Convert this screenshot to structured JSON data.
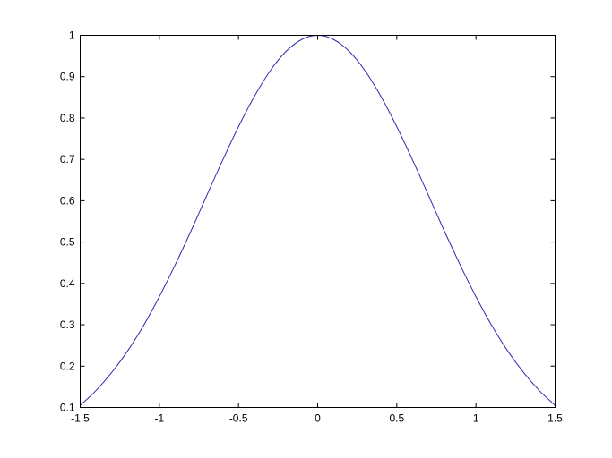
{
  "chart_data": {
    "type": "line",
    "title": "",
    "xlabel": "",
    "ylabel": "",
    "xlim": [
      -1.5,
      1.5
    ],
    "ylim": [
      0.1,
      1
    ],
    "grid": false,
    "box": true,
    "x_ticks": [
      -1.5,
      -1,
      -0.5,
      0,
      0.5,
      1,
      1.5
    ],
    "x_tick_labels": [
      "-1.5",
      "-1",
      "-0.5",
      "0",
      "0.5",
      "1",
      "1.5"
    ],
    "y_ticks": [
      0.1,
      0.2,
      0.3,
      0.4,
      0.5,
      0.6,
      0.7,
      0.8,
      0.9,
      1
    ],
    "y_tick_labels": [
      "0.1",
      "0.2",
      "0.3",
      "0.4",
      "0.5",
      "0.6",
      "0.7",
      "0.8",
      "0.9",
      "1"
    ],
    "series": [
      {
        "color": "#2b2bb0",
        "x": [
          -1.5,
          -1.4,
          -1.3,
          -1.2,
          -1.1,
          -1.0,
          -0.9,
          -0.8,
          -0.7,
          -0.6,
          -0.5,
          -0.4,
          -0.3,
          -0.2,
          -0.1,
          0,
          0.1,
          0.2,
          0.3,
          0.4,
          0.5,
          0.6,
          0.7,
          0.8,
          0.9,
          1.0,
          1.1,
          1.2,
          1.3,
          1.4,
          1.5
        ],
        "y": [
          0.105,
          0.141,
          0.185,
          0.237,
          0.298,
          0.368,
          0.445,
          0.527,
          0.613,
          0.698,
          0.779,
          0.852,
          0.914,
          0.961,
          0.99,
          1.0,
          0.99,
          0.961,
          0.914,
          0.852,
          0.779,
          0.698,
          0.613,
          0.527,
          0.445,
          0.368,
          0.298,
          0.237,
          0.185,
          0.141,
          0.105
        ]
      }
    ]
  }
}
